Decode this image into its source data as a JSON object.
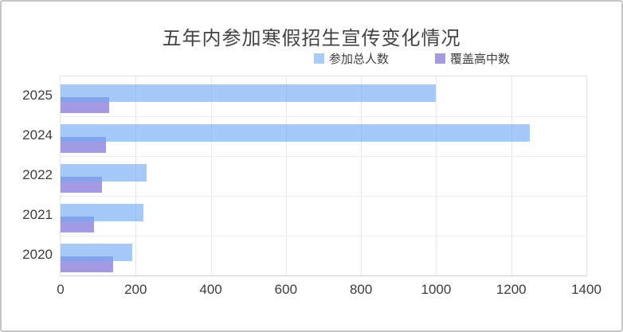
{
  "chart": {
    "title": "五年内参加寒假招生宣传变化情况"
  },
  "chart_data": {
    "type": "bar",
    "orientation": "horizontal",
    "title": "五年内参加寒假招生宣传变化情况",
    "categories": [
      "2025",
      "2024",
      "2022",
      "2021",
      "2020"
    ],
    "series": [
      {
        "name": "参加总人数",
        "color": "#a9cdf8",
        "bar_rgba": "rgba(110,170,245,0.62)",
        "values": [
          1000,
          1250,
          230,
          220,
          190
        ]
      },
      {
        "name": "覆盖高中数",
        "color": "#a29be3",
        "bar_rgba": "#a29be3",
        "values": [
          130,
          120,
          110,
          90,
          140
        ]
      }
    ],
    "xlabel": "",
    "ylabel": "",
    "xlim": [
      0,
      1400
    ],
    "x_ticks": [
      0,
      200,
      400,
      600,
      800,
      1000,
      1200,
      1400
    ],
    "grid": true,
    "legend_position": "top"
  }
}
